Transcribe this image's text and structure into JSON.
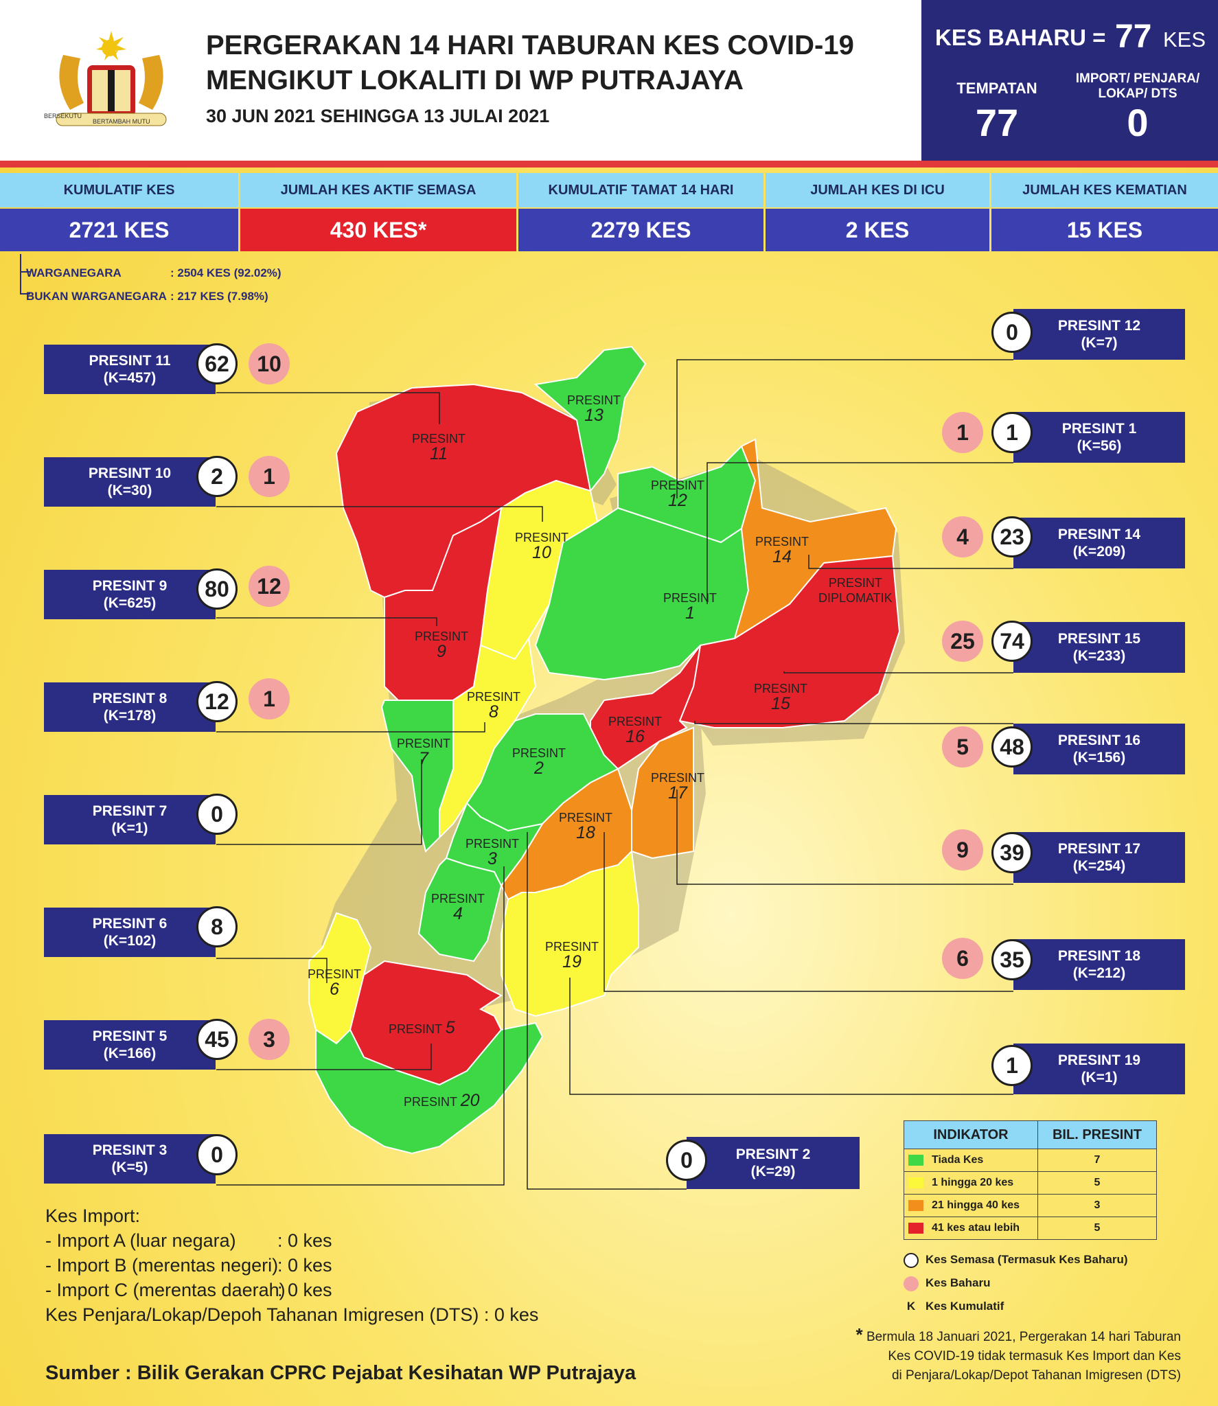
{
  "header": {
    "title_line1": "PERGERAKAN 14 HARI TABURAN KES COVID-19",
    "title_line2": "MENGIKUT LOKALITI DI WP PUTRAJAYA",
    "date_range": "30 JUN 2021 SEHINGGA 13 JULAI 2021",
    "emblem_motto_left": "BERSEKUTU",
    "emblem_motto_right": "BERTAMBAH MUTU"
  },
  "new_cases": {
    "label": "KES BAHARU =",
    "value": "77",
    "unit": "KES",
    "local_label": "TEMPATAN",
    "local_value": "77",
    "import_label_1": "IMPORT/ PENJARA/",
    "import_label_2": "LOKAP/ DTS",
    "import_value": "0"
  },
  "stats": [
    {
      "label": "KUMULATIF KES",
      "value": "2721 KES"
    },
    {
      "label": "JUMLAH KES AKTIF SEMASA",
      "value": "430 KES*"
    },
    {
      "label": "KUMULATIF TAMAT 14 HARI",
      "value": "2279 KES"
    },
    {
      "label": "JUMLAH KES DI ICU",
      "value": "2 KES"
    },
    {
      "label": "JUMLAH KES KEMATIAN",
      "value": "15 KES"
    }
  ],
  "citizenship": {
    "citizen_label": "WARGANEGARA",
    "citizen_value": ": 2504 KES (92.02%)",
    "noncitizen_label": "BUKAN WARGANEGARA",
    "noncitizen_value": ": 217 KES (7.98%)"
  },
  "precincts_left": [
    {
      "name": "PRESINT 11",
      "k": "(K=457)",
      "active": "62",
      "new": "10"
    },
    {
      "name": "PRESINT 10",
      "k": "(K=30)",
      "active": "2",
      "new": "1"
    },
    {
      "name": "PRESINT 9",
      "k": "(K=625)",
      "active": "80",
      "new": "12"
    },
    {
      "name": "PRESINT 8",
      "k": "(K=178)",
      "active": "12",
      "new": "1"
    },
    {
      "name": "PRESINT 7",
      "k": "(K=1)",
      "active": "0",
      "new": ""
    },
    {
      "name": "PRESINT 6",
      "k": "(K=102)",
      "active": "8",
      "new": ""
    },
    {
      "name": "PRESINT 5",
      "k": "(K=166)",
      "active": "45",
      "new": "3"
    },
    {
      "name": "PRESINT 3",
      "k": "(K=5)",
      "active": "0",
      "new": ""
    }
  ],
  "precincts_right": [
    {
      "name": "PRESINT 12",
      "k": "(K=7)",
      "active": "0",
      "new": ""
    },
    {
      "name": "PRESINT 1",
      "k": "(K=56)",
      "active": "1",
      "new": "1"
    },
    {
      "name": "PRESINT 14",
      "k": "(K=209)",
      "active": "23",
      "new": "4"
    },
    {
      "name": "PRESINT 15",
      "k": "(K=233)",
      "active": "74",
      "new": "25"
    },
    {
      "name": "PRESINT 16",
      "k": "(K=156)",
      "active": "48",
      "new": "5"
    },
    {
      "name": "PRESINT 17",
      "k": "(K=254)",
      "active": "39",
      "new": "9"
    },
    {
      "name": "PRESINT 18",
      "k": "(K=212)",
      "active": "35",
      "new": "6"
    },
    {
      "name": "PRESINT 19",
      "k": "(K=1)",
      "active": "1",
      "new": ""
    }
  ],
  "precinct_2": {
    "name": "PRESINT 2",
    "k": "(K=29)",
    "active": "0"
  },
  "map_labels": {
    "p11": "PRESINT",
    "n11": "11",
    "p13": "PRESINT",
    "n13": "13",
    "p12": "PRESINT",
    "n12": "12",
    "p10": "PRESINT",
    "n10": "10",
    "p14": "PRESINT",
    "n14": "14",
    "pdip": "PRESINT",
    "ndip": "DIPLOMATIK",
    "p1": "PRESINT",
    "n1": "1",
    "p9": "PRESINT",
    "n9": "9",
    "p8": "PRESINT",
    "n8": "8",
    "p15": "PRESINT",
    "n15": "15",
    "p16": "PRESINT",
    "n16": "16",
    "p7": "PRESINT",
    "n7": "7",
    "p2": "PRESINT",
    "n2": "2",
    "p17": "PRESINT",
    "n17": "17",
    "p18": "PRESINT",
    "n18": "18",
    "p3": "PRESINT",
    "n3": "3",
    "p4": "PRESINT",
    "n4": "4",
    "p19": "PRESINT",
    "n19": "19",
    "p6": "PRESINT",
    "n6": "6",
    "p5": "PRESINT",
    "n5": "5",
    "p20": "PRESINT",
    "n20": "20"
  },
  "colors": {
    "green": "#3ed846",
    "yellow": "#fbf73a",
    "orange": "#f28f1c",
    "red": "#e4222b",
    "navy": "#2b2d85",
    "pink": "#f4a3a3"
  },
  "legend": {
    "col1": "INDIKATOR",
    "col2": "BIL. PRESINT",
    "rows": [
      {
        "label": "Tiada Kes",
        "count": "7"
      },
      {
        "label": "1 hingga 20 kes",
        "count": "5"
      },
      {
        "label": "21 hingga 40 kes",
        "count": "3"
      },
      {
        "label": "41 kes atau lebih",
        "count": "5"
      }
    ],
    "white_circle": "Kes Semasa (Termasuk Kes Baharu)",
    "pink_circle": "Kes Baharu",
    "k_symbol": "K",
    "k_label": "Kes Kumulatif"
  },
  "imports": {
    "heading": "Kes Import:",
    "a_label": "- Import A (luar negara)",
    "a_value": ": 0 kes",
    "b_label": "- Import B (merentas negeri)",
    "b_value": ": 0 kes",
    "c_label": "- Import C (merentas daerah)",
    "c_value": ": 0 kes",
    "dts": "Kes Penjara/Lokap/Depoh Tahanan Imigresen (DTS) : 0 kes"
  },
  "note": {
    "star": "*",
    "line1": "Bermula 18 Januari 2021, Pergerakan 14 hari Taburan",
    "line2": "Kes COVID-19 tidak termasuk Kes Import dan Kes",
    "line3": "di Penjara/Lokap/Depot Tahanan Imigresen (DTS)"
  },
  "source": "Sumber : Bilik Gerakan CPRC Pejabat Kesihatan WP Putrajaya"
}
